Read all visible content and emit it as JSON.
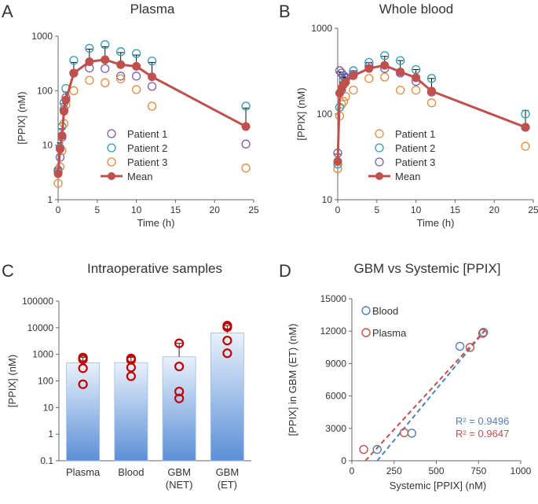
{
  "chart_data": [
    {
      "panel": "A",
      "type": "line",
      "title": "Plasma",
      "xlabel": "Time (h)",
      "ylabel": "[PPIX] (nM)",
      "xlim": [
        0,
        25
      ],
      "ylim": [
        1,
        1000
      ],
      "yscale": "log",
      "xticks": [
        "0",
        "5",
        "10",
        "15",
        "20",
        "25"
      ],
      "yticks": [
        "1",
        "10",
        "100",
        "1000"
      ],
      "legend": [
        "Patient 1",
        "Patient 2",
        "Patient 3",
        "Mean"
      ],
      "series": [
        {
          "name": "Patient 1",
          "color": "#7b5ea7",
          "x": [
            0,
            0.25,
            0.5,
            0.75,
            1,
            2,
            4,
            6,
            8,
            10,
            12,
            24
          ],
          "y": [
            3.5,
            6,
            14,
            45,
            75,
            210,
            260,
            255,
            185,
            185,
            120,
            10.5
          ]
        },
        {
          "name": "Patient 2",
          "color": "#2f9bb0",
          "x": [
            0,
            0.25,
            0.5,
            0.75,
            1,
            2,
            4,
            6,
            8,
            10,
            12,
            24
          ],
          "y": [
            3.2,
            9,
            22,
            60,
            110,
            360,
            600,
            700,
            520,
            480,
            350,
            52
          ]
        },
        {
          "name": "Patient 3",
          "color": "#e8893a",
          "x": [
            0,
            0.25,
            0.5,
            0.75,
            1,
            2,
            4,
            6,
            8,
            10,
            12,
            24
          ],
          "y": [
            2.0,
            4,
            8,
            25,
            55,
            100,
            155,
            140,
            165,
            105,
            52,
            3.8
          ]
        },
        {
          "name": "Mean",
          "color": "#c0504d",
          "x": [
            0,
            0.25,
            0.5,
            0.75,
            1,
            2,
            4,
            6,
            8,
            10,
            12,
            24
          ],
          "y": [
            3.0,
            8.5,
            15,
            42,
            68,
            210,
            340,
            370,
            300,
            280,
            180,
            22
          ],
          "yerr_upper": [
            3.8,
            11,
            20,
            58,
            95,
            330,
            580,
            640,
            500,
            450,
            330,
            48
          ]
        }
      ]
    },
    {
      "panel": "B",
      "type": "line",
      "title": "Whole blood",
      "xlabel": "Time (h)",
      "ylabel": "[PPIX] (nM)",
      "xlim": [
        0,
        25
      ],
      "ylim": [
        10,
        1000
      ],
      "yscale": "log",
      "xticks": [
        "0",
        "5",
        "10",
        "15",
        "20",
        "25"
      ],
      "yticks": [
        "10",
        "100",
        "1000"
      ],
      "legend": [
        "Patient 1",
        "Patient 2",
        "Patient 3",
        "Mean"
      ],
      "series": [
        {
          "name": "Patient 1",
          "color": "#e8893a",
          "x": [
            0,
            0.25,
            0.5,
            0.75,
            1,
            2,
            4,
            6,
            8,
            10,
            12,
            24
          ],
          "y": [
            23,
            95,
            130,
            140,
            160,
            190,
            260,
            270,
            190,
            190,
            135,
            42
          ]
        },
        {
          "name": "Patient 2",
          "color": "#2f9bb0",
          "x": [
            0,
            0.25,
            0.5,
            0.75,
            1,
            2,
            4,
            6,
            8,
            10,
            12,
            24
          ],
          "y": [
            26,
            120,
            190,
            250,
            270,
            320,
            400,
            480,
            420,
            330,
            260,
            100
          ]
        },
        {
          "name": "Patient 3",
          "color": "#7b5ea7",
          "x": [
            0,
            0.25,
            0.5,
            0.75,
            1,
            2,
            4,
            6,
            8,
            10,
            12,
            24
          ],
          "y": [
            35,
            320,
            300,
            280,
            260,
            290,
            360,
            340,
            300,
            240,
            180,
            70
          ]
        },
        {
          "name": "Mean",
          "color": "#c0504d",
          "x": [
            0,
            0.25,
            0.5,
            0.75,
            1,
            2,
            4,
            6,
            8,
            10,
            12,
            24
          ],
          "y": [
            28,
            175,
            200,
            220,
            235,
            280,
            340,
            370,
            310,
            265,
            185,
            70
          ],
          "yerr_upper": [
            34,
            310,
            290,
            270,
            265,
            320,
            400,
            470,
            420,
            330,
            260,
            110
          ]
        }
      ]
    },
    {
      "panel": "C",
      "type": "bar",
      "title": "Intraoperative samples",
      "ylabel": "[PPIX] (nM)",
      "yscale": "log",
      "ylim": [
        0.1,
        100000
      ],
      "yticks": [
        "0.1",
        "1",
        "10",
        "100",
        "1000",
        "10000",
        "100000"
      ],
      "categories": [
        "Plasma",
        "Blood",
        "GBM\n(NET)",
        "GBM\n(ET)"
      ],
      "category_lines": [
        [
          "Plasma"
        ],
        [
          "Blood"
        ],
        [
          "GBM",
          "(NET)"
        ],
        [
          "GBM",
          "(ET)"
        ]
      ],
      "values": [
        480,
        490,
        810,
        6400
      ],
      "yerr_upper": [
        780,
        780,
        2600,
        12000
      ],
      "points": [
        [
          760,
          650,
          300,
          75
        ],
        [
          700,
          620,
          320,
          150
        ],
        [
          2600,
          350,
          40,
          22
        ],
        [
          12000,
          10500,
          3300,
          1100
        ]
      ],
      "bar_color": "#5b8fd6",
      "point_color": "#c00000"
    },
    {
      "panel": "D",
      "type": "scatter",
      "title": "GBM vs Systemic [PPIX]",
      "xlabel": "Systemic [PPIX] (nM)",
      "ylabel": "[PPIX] in GBM (ET) (nM)",
      "xlim": [
        0,
        1000
      ],
      "ylim": [
        0,
        15000
      ],
      "xticks": [
        "0",
        "250",
        "500",
        "750",
        "1000"
      ],
      "yticks": [
        "0",
        "3000",
        "6000",
        "9000",
        "12000",
        "15000"
      ],
      "legend": [
        "Blood",
        "Plasma"
      ],
      "series": [
        {
          "name": "Blood",
          "color": "#4f81bd",
          "x": [
            150,
            355,
            640,
            780
          ],
          "y": [
            1050,
            2550,
            10600,
            11900
          ],
          "r2_label": "R² = 0.9496",
          "fit_x": [
            150,
            790
          ],
          "fit_y": [
            0,
            12100
          ]
        },
        {
          "name": "Plasma",
          "color": "#c0504d",
          "x": [
            70,
            310,
            700,
            775
          ],
          "y": [
            1050,
            2600,
            10500,
            11800
          ],
          "r2_label": "R² = 0.9647",
          "fit_x": [
            80,
            790
          ],
          "fit_y": [
            0,
            12100
          ]
        }
      ]
    }
  ]
}
